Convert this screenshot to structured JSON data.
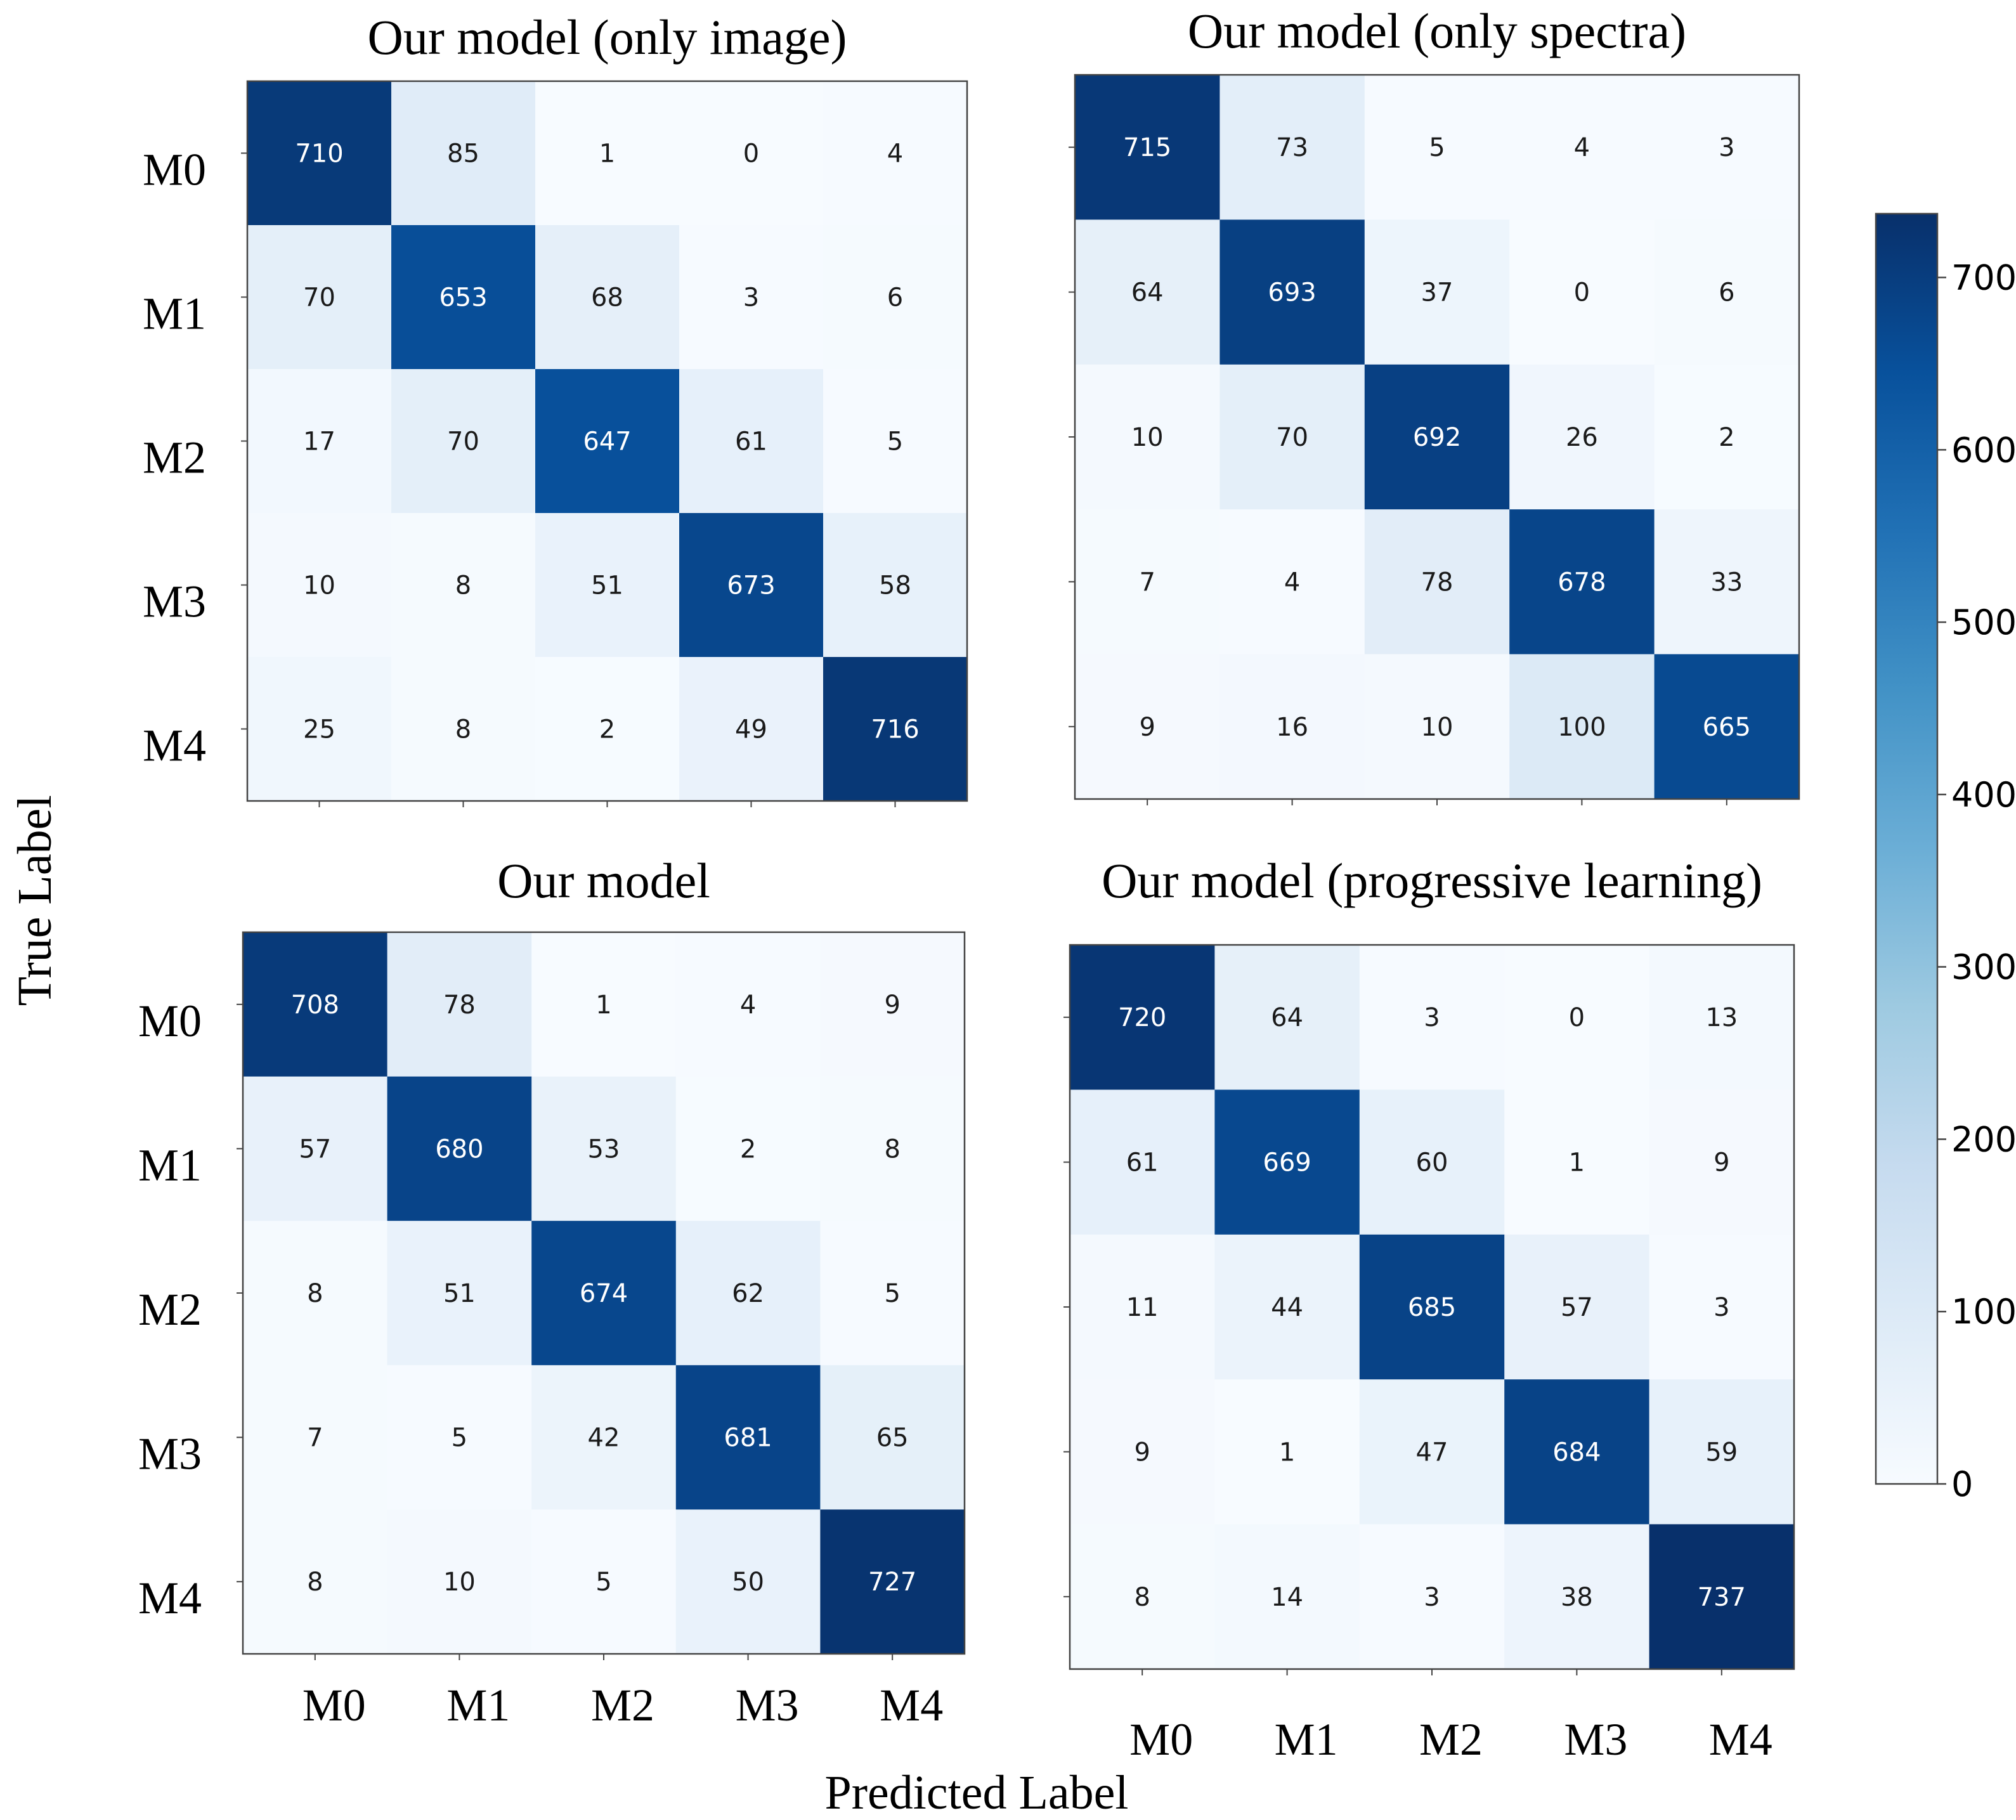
{
  "chart_data": {
    "type": "heatmap",
    "xlabel": "Predicted Label",
    "ylabel": "True Label",
    "class_labels": [
      "M0",
      "M1",
      "M2",
      "M3",
      "M4"
    ],
    "colorbar": {
      "min": 0,
      "max": 737,
      "ticks": [
        0,
        100,
        200,
        300,
        400,
        500,
        600,
        700
      ],
      "colormap": "Blues"
    },
    "panels": [
      {
        "title": "Our model (only image)",
        "matrix": [
          [
            710,
            85,
            1,
            0,
            4
          ],
          [
            70,
            653,
            68,
            3,
            6
          ],
          [
            17,
            70,
            647,
            61,
            5
          ],
          [
            10,
            8,
            51,
            673,
            58
          ],
          [
            25,
            8,
            2,
            49,
            716
          ]
        ]
      },
      {
        "title": "Our model (only spectra)",
        "matrix": [
          [
            715,
            73,
            5,
            4,
            3
          ],
          [
            64,
            693,
            37,
            0,
            6
          ],
          [
            10,
            70,
            692,
            26,
            2
          ],
          [
            7,
            4,
            78,
            678,
            33
          ],
          [
            9,
            16,
            10,
            100,
            665
          ]
        ]
      },
      {
        "title": "Our model",
        "matrix": [
          [
            708,
            78,
            1,
            4,
            9
          ],
          [
            57,
            680,
            53,
            2,
            8
          ],
          [
            8,
            51,
            674,
            62,
            5
          ],
          [
            7,
            5,
            42,
            681,
            65
          ],
          [
            8,
            10,
            5,
            50,
            727
          ]
        ]
      },
      {
        "title": "Our model (progressive learning)",
        "matrix": [
          [
            720,
            64,
            3,
            0,
            13
          ],
          [
            61,
            669,
            60,
            1,
            9
          ],
          [
            11,
            44,
            685,
            57,
            3
          ],
          [
            9,
            1,
            47,
            684,
            59
          ],
          [
            8,
            14,
            3,
            38,
            737
          ]
        ]
      }
    ]
  }
}
